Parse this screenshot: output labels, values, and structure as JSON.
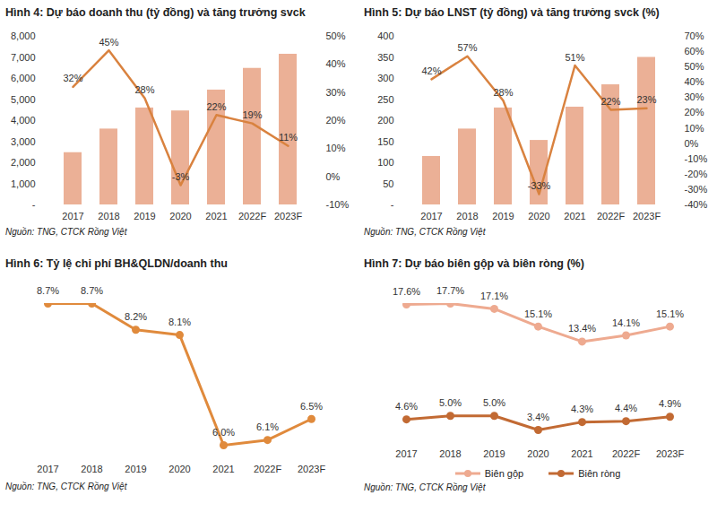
{
  "chart_data": [
    {
      "type": "bar",
      "title": "Hình 4: Dự báo doanh thu (tỷ đồng) và tăng trưởng svck",
      "source": "Nguồn: TNG, CTCK Rồng Việt",
      "categories": [
        "2017",
        "2018",
        "2019",
        "2020",
        "2021",
        "2022F",
        "2023F"
      ],
      "series": [
        {
          "type": "bar",
          "color": "#ebb096",
          "values": [
            2480,
            3600,
            4600,
            4460,
            5450,
            6480,
            7150
          ]
        },
        {
          "type": "line",
          "axis": "y2",
          "color": "#d9823f",
          "values": [
            32,
            45,
            28,
            -3,
            22,
            19,
            11
          ],
          "data_labels": true,
          "value_labels": [
            "32%",
            "45%",
            "28%",
            "-3%",
            "22%",
            "19%",
            "11%"
          ]
        }
      ],
      "ylim": [
        0,
        8000
      ],
      "yticks": [
        {
          "value": 0,
          "label": "-"
        },
        {
          "value": 1000,
          "label": "1,000"
        },
        {
          "value": 2000,
          "label": "2,000"
        },
        {
          "value": 3000,
          "label": "3,000"
        },
        {
          "value": 4000,
          "label": "4,000"
        },
        {
          "value": 5000,
          "label": "5,000"
        },
        {
          "value": 6000,
          "label": "6,000"
        },
        {
          "value": 7000,
          "label": "7,000"
        },
        {
          "value": 8000,
          "label": "8,000"
        }
      ],
      "y2lim": [
        -10,
        50
      ],
      "y2ticks": [
        {
          "value": -10,
          "label": "-10%"
        },
        {
          "value": 0,
          "label": "0%"
        },
        {
          "value": 10,
          "label": "10%"
        },
        {
          "value": 20,
          "label": "20%"
        },
        {
          "value": 30,
          "label": "30%"
        },
        {
          "value": 40,
          "label": "40%"
        },
        {
          "value": 50,
          "label": "50%"
        }
      ],
      "grid": false
    },
    {
      "type": "bar",
      "title": "Hình 5: Dự báo LNST (tỷ đồng) và tăng trưởng svck (%)",
      "source": "Nguồn: TNG, CTCK Rồng Việt",
      "categories": [
        "2017",
        "2018",
        "2019",
        "2020",
        "2021",
        "2022F",
        "2023F"
      ],
      "series": [
        {
          "type": "bar",
          "color": "#ebb096",
          "values": [
            115,
            180,
            230,
            153,
            232,
            285,
            350
          ]
        },
        {
          "type": "line",
          "axis": "y2",
          "color": "#d9823f",
          "values": [
            42,
            57,
            28,
            -33,
            51,
            22,
            23
          ],
          "data_labels": true,
          "value_labels": [
            "42%",
            "57%",
            "28%",
            "-33%",
            "51%",
            "22%",
            "23%"
          ]
        }
      ],
      "ylim": [
        0,
        400
      ],
      "yticks": [
        {
          "value": 0,
          "label": "-"
        },
        50,
        100,
        150,
        200,
        250,
        300,
        350,
        400
      ],
      "y2lim": [
        -40,
        70
      ],
      "y2ticks": [
        {
          "value": -40,
          "label": "-40%"
        },
        {
          "value": -30,
          "label": "-30%"
        },
        {
          "value": -20,
          "label": "-20%"
        },
        {
          "value": -10,
          "label": "-10%"
        },
        {
          "value": 0,
          "label": "0%"
        },
        {
          "value": 10,
          "label": "10%"
        },
        {
          "value": 20,
          "label": "20%"
        },
        {
          "value": 30,
          "label": "30%"
        },
        {
          "value": 40,
          "label": "40%"
        },
        {
          "value": 50,
          "label": "50%"
        },
        {
          "value": 60,
          "label": "60%"
        },
        {
          "value": 70,
          "label": "70%"
        }
      ],
      "grid": false
    },
    {
      "type": "line",
      "title": "Hình 6: Tỷ lệ chi phí BH&QLDN/doanh thu",
      "source": "Nguồn: TNG, CTCK Rồng Việt",
      "categories": [
        "2017",
        "2018",
        "2019",
        "2020",
        "2021",
        "2022F",
        "2023F"
      ],
      "series": [
        {
          "color": "#e08a3c",
          "marker": "circle",
          "values": [
            8.7,
            8.7,
            8.2,
            8.1,
            6.0,
            6.1,
            6.5
          ],
          "data_labels": true,
          "value_labels": [
            "8.7%",
            "8.7%",
            "8.2%",
            "8.1%",
            "6.0%",
            "6.1%",
            "6.5%"
          ]
        }
      ],
      "tick_labels": "x",
      "grid": false
    },
    {
      "type": "line",
      "title": "Hình 7: Dự báo biên gộp và biên ròng (%)",
      "source": "Nguồn: TNG, CTCK Rồng Việt",
      "categories": [
        "2017",
        "2018",
        "2019",
        "2020",
        "2021",
        "2022F",
        "2023F"
      ],
      "series": [
        {
          "name": "Biên gộp",
          "color": "#eeaa90",
          "marker": "circle",
          "values": [
            17.6,
            17.7,
            17.1,
            15.1,
            13.4,
            14.1,
            15.1
          ],
          "data_labels": true,
          "value_labels": [
            "17.6%",
            "17.7%",
            "17.1%",
            "15.1%",
            "13.4%",
            "14.1%",
            "15.1%"
          ]
        },
        {
          "name": "Biên ròng",
          "color": "#c26a33",
          "marker": "circle",
          "values": [
            4.6,
            5.0,
            5.0,
            3.4,
            4.3,
            4.4,
            4.9
          ],
          "data_labels": true,
          "value_labels": [
            "4.6%",
            "5.0%",
            "5.0%",
            "3.4%",
            "4.3%",
            "4.4%",
            "4.9%"
          ]
        }
      ],
      "tick_labels": "x",
      "legend": "bottom",
      "grid": false
    }
  ]
}
